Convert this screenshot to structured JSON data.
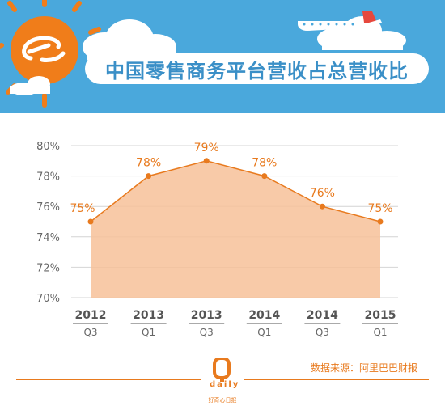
{
  "header": {
    "title": "中国零售商务平台营收占总营收比",
    "logo": "alibaba-logo-icon",
    "colors": {
      "sky": "#4aa8dc",
      "sun": "#f07d1a",
      "title": "#3a8fc7"
    }
  },
  "chart_data": {
    "type": "area",
    "title": "中国零售商务平台营收占总营收比",
    "categories": [
      {
        "year": "2012",
        "quarter": "Q3"
      },
      {
        "year": "2013",
        "quarter": "Q1"
      },
      {
        "year": "2013",
        "quarter": "Q3"
      },
      {
        "year": "2014",
        "quarter": "Q1"
      },
      {
        "year": "2014",
        "quarter": "Q3"
      },
      {
        "year": "2015",
        "quarter": "Q1"
      }
    ],
    "values": [
      75,
      78,
      79,
      78,
      76,
      75
    ],
    "value_labels": [
      "75%",
      "78%",
      "79%",
      "78%",
      "76%",
      "75%"
    ],
    "y_ticks": [
      "70%",
      "72%",
      "74%",
      "76%",
      "78%",
      "80%"
    ],
    "ylim": [
      70,
      80
    ],
    "grid": true,
    "colors": {
      "line": "#e87a1e",
      "fill": "#f7c199",
      "label": "#e87a1e",
      "grid": "#d4d4d4",
      "axis_text": "#666666"
    }
  },
  "footer": {
    "source": "数据来源：阿里巴巴财报",
    "logo_letter": "Q",
    "logo_word": "daily",
    "logo_cn": "好奇心日报",
    "color": "#e87a1e"
  }
}
